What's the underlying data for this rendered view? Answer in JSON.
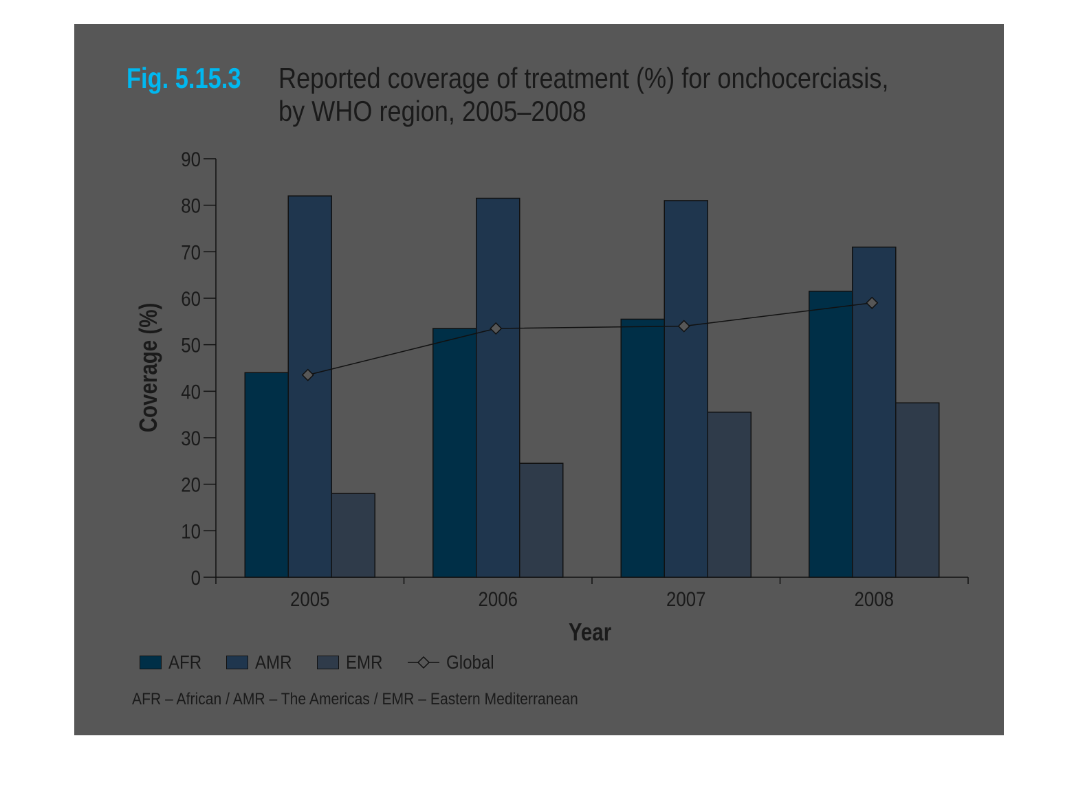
{
  "figure": {
    "number": "Fig. 5.15.3",
    "title_line1": "Reported coverage of treatment (%) for onchocerciasis,",
    "title_line2": "by WHO region, 2005–2008",
    "footnote": "AFR – African / AMR – The Americas / EMR – Eastern Mediterranean"
  },
  "colors": {
    "panel": "#575757",
    "AFR": "#002f47",
    "AMR": "#1f364e",
    "EMR": "#2f3b4a",
    "Global": "#111111"
  },
  "chart_data": {
    "type": "bar",
    "categories": [
      "2005",
      "2006",
      "2007",
      "2008"
    ],
    "series": [
      {
        "name": "AFR",
        "values": [
          44,
          53.5,
          55.5,
          61.5
        ]
      },
      {
        "name": "AMR",
        "values": [
          82,
          81.5,
          81,
          71
        ]
      },
      {
        "name": "EMR",
        "values": [
          18,
          24.5,
          35.5,
          37.5
        ]
      }
    ],
    "line_series": [
      {
        "name": "Global",
        "values": [
          43.5,
          53.5,
          54,
          59
        ],
        "marker": "diamond"
      }
    ],
    "xlabel": "Year",
    "ylabel": "Coverage (%)",
    "ylim": [
      0,
      90
    ],
    "yticks": [
      0,
      10,
      20,
      30,
      40,
      50,
      60,
      70,
      80,
      90
    ],
    "grid": false,
    "legend_position": "bottom-left"
  }
}
